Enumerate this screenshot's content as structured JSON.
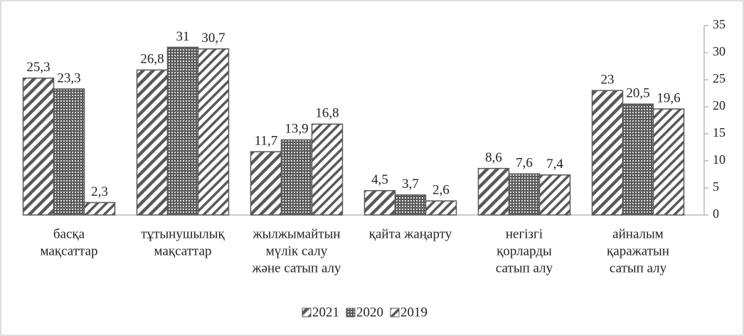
{
  "chart_data": {
    "type": "bar",
    "categories": [
      [
        "басқа",
        "мақсаттар"
      ],
      [
        "тұтынушылық",
        "мақсаттар"
      ],
      [
        "жылжымайтын",
        "мүлік салу",
        "және сатып алу"
      ],
      [
        "қайта жаңарту"
      ],
      [
        "негізгі",
        "қорларды",
        "сатып алу"
      ],
      [
        "айналым",
        "қаражатын",
        "сатып алу"
      ]
    ],
    "series": [
      {
        "name": "2021",
        "color": "#595959",
        "pattern": "hatch",
        "values": [
          25.3,
          26.8,
          11.7,
          4.5,
          8.6,
          23
        ],
        "value_labels": [
          "25,3",
          "26,8",
          "11,7",
          "4,5",
          "8,6",
          "23"
        ]
      },
      {
        "name": "2020",
        "color": "#595959",
        "pattern": "dots",
        "values": [
          23.3,
          31,
          13.9,
          3.7,
          7.6,
          20.5
        ],
        "value_labels": [
          "23,3",
          "31",
          "13,9",
          "3,7",
          "7,6",
          "20,5"
        ]
      },
      {
        "name": "2019",
        "color": "#595959",
        "pattern": "hatch-thin",
        "values": [
          2.3,
          30.7,
          16.8,
          2.6,
          7.4,
          19.6
        ],
        "value_labels": [
          "2,3",
          "30,7",
          "16,8",
          "2,6",
          "7,4",
          "19,6"
        ]
      }
    ],
    "ylim": [
      0,
      35
    ],
    "yticks": [
      0,
      5,
      10,
      15,
      20,
      25,
      30,
      35
    ],
    "y_axis_side": "right",
    "legend": "bottom"
  }
}
